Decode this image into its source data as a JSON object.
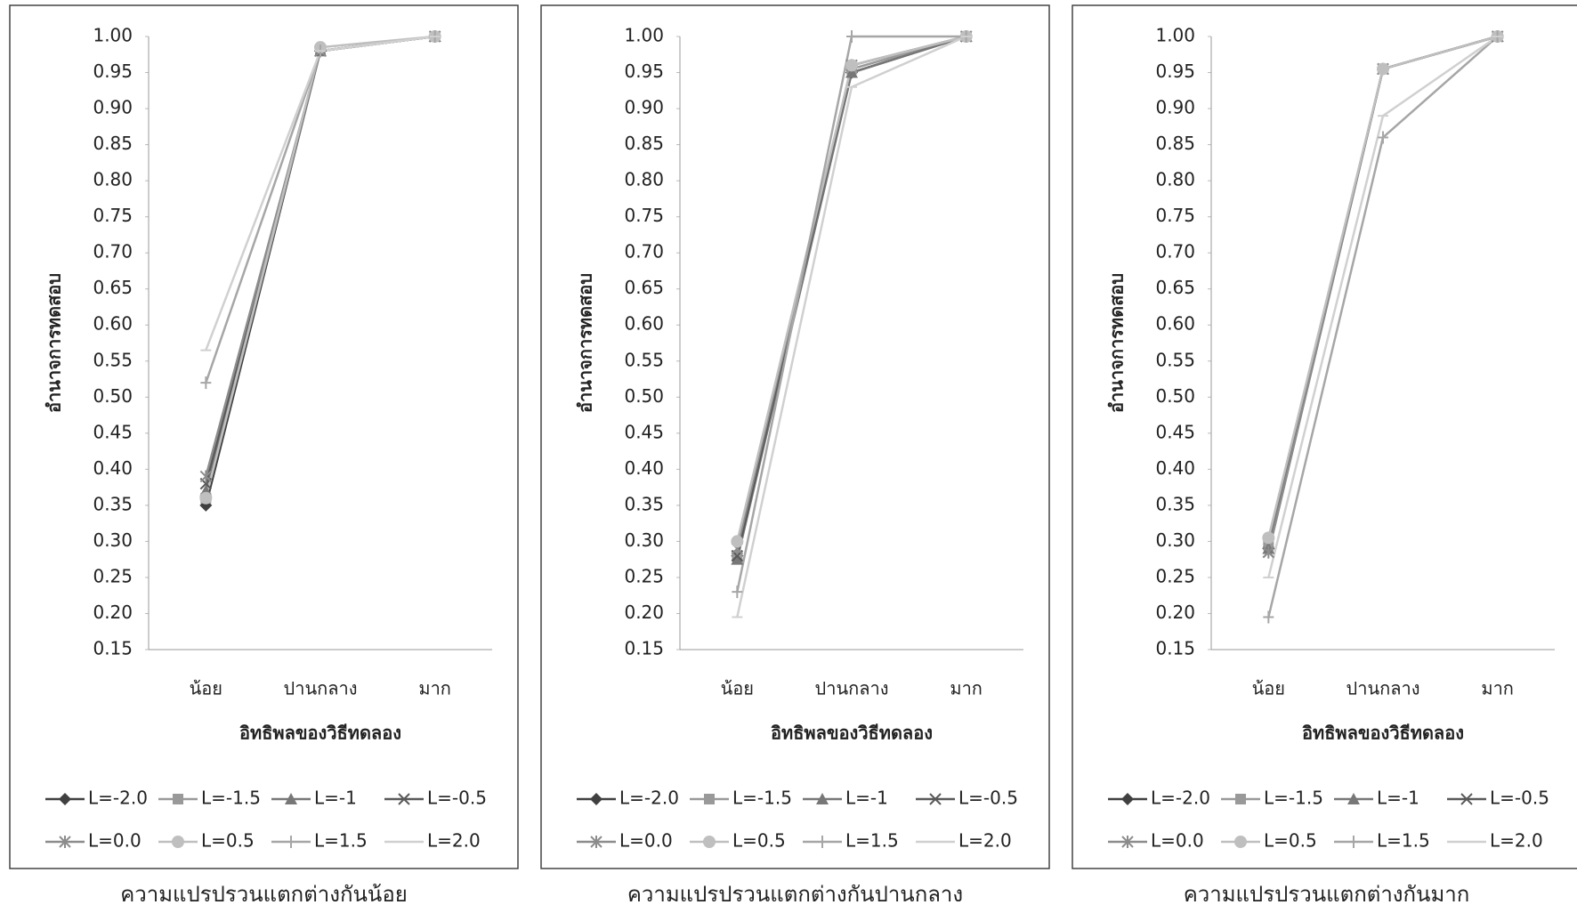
{
  "chart_data": [
    {
      "type": "line",
      "y_label": "อำนาจการทดสอบ",
      "x_label": "อิทธิพลของวิธีทดลอง",
      "caption": "ความแปรปรวนแตกต่างกันน้อย",
      "categories": [
        "น้อย",
        "ปานกลาง",
        "มาก"
      ],
      "ylim": [
        0.15,
        1.0
      ],
      "yticks": [
        0.15,
        {
          "value": 0.2,
          "label": "0.20"
        },
        0.25,
        {
          "value": 0.3,
          "label": "0.30"
        },
        0.35,
        {
          "value": 0.4,
          "label": "0.40"
        },
        0.45,
        {
          "value": 0.5,
          "label": "0.50"
        },
        0.55,
        {
          "value": 0.6,
          "label": "0.60"
        },
        0.65,
        {
          "value": 0.7,
          "label": "0.70"
        },
        0.75,
        {
          "value": 0.8,
          "label": "0.80"
        },
        0.85,
        {
          "value": 0.9,
          "label": "0.90"
        },
        0.95,
        {
          "value": 1.0,
          "label": "1.00"
        }
      ],
      "series": [
        {
          "name": "L=-2.0",
          "color": "#404040",
          "marker": "diamond",
          "values": [
            0.35,
            0.98,
            1.0
          ]
        },
        {
          "name": "L=-1.5",
          "color": "#999999",
          "marker": "square",
          "values": [
            0.36,
            0.98,
            1.0
          ]
        },
        {
          "name": "L=-1",
          "color": "#777777",
          "marker": "triangle",
          "values": [
            0.37,
            0.98,
            1.0
          ]
        },
        {
          "name": "L=-0.5",
          "color": "#595959",
          "marker": "x",
          "values": [
            0.38,
            0.98,
            1.0
          ]
        },
        {
          "name": "L=0.0",
          "color": "#8c8c8c",
          "marker": "star",
          "values": [
            0.39,
            0.98,
            1.0
          ]
        },
        {
          "name": "L=0.5",
          "color": "#bfbfbf",
          "marker": "circle",
          "values": [
            0.36,
            0.985,
            1.0
          ]
        },
        {
          "name": "L=1.5",
          "color": "#a6a6a6",
          "marker": "plus",
          "values": [
            0.52,
            0.98,
            1.0
          ]
        },
        {
          "name": "L=2.0",
          "color": "#d0d0d0",
          "marker": "dash",
          "values": [
            0.565,
            0.98,
            1.0
          ]
        }
      ]
    },
    {
      "type": "line",
      "y_label": "อำนาจการทดสอบ",
      "x_label": "อิทธิพลของวิธีทดลอง",
      "caption": "ความแปรปรวนแตกต่างกันปานกลาง",
      "categories": [
        "น้อย",
        "ปานกลาง",
        "มาก"
      ],
      "ylim": [
        0.15,
        1.0
      ],
      "yticks": [
        0.15,
        {
          "value": 0.2,
          "label": "0.20"
        },
        0.25,
        {
          "value": 0.3,
          "label": "0.30"
        },
        0.35,
        {
          "value": 0.4,
          "label": "0.40"
        },
        0.45,
        {
          "value": 0.5,
          "label": "0.50"
        },
        0.55,
        {
          "value": 0.6,
          "label": "0.60"
        },
        0.65,
        {
          "value": 0.7,
          "label": "0.70"
        },
        0.75,
        {
          "value": 0.8,
          "label": "0.80"
        },
        0.85,
        {
          "value": 0.9,
          "label": "0.90"
        },
        0.95,
        {
          "value": 1.0,
          "label": "1.00"
        }
      ],
      "series": [
        {
          "name": "L=-2.0",
          "color": "#404040",
          "marker": "diamond",
          "values": [
            0.28,
            0.95,
            1.0
          ]
        },
        {
          "name": "L=-1.5",
          "color": "#999999",
          "marker": "square",
          "values": [
            0.28,
            0.955,
            1.0
          ]
        },
        {
          "name": "L=-1",
          "color": "#777777",
          "marker": "triangle",
          "values": [
            0.275,
            0.95,
            1.0
          ]
        },
        {
          "name": "L=-0.5",
          "color": "#595959",
          "marker": "x",
          "values": [
            0.28,
            0.96,
            1.0
          ]
        },
        {
          "name": "L=0.0",
          "color": "#8c8c8c",
          "marker": "star",
          "values": [
            0.29,
            0.96,
            1.0
          ]
        },
        {
          "name": "L=0.5",
          "color": "#bfbfbf",
          "marker": "circle",
          "values": [
            0.3,
            0.96,
            1.0
          ]
        },
        {
          "name": "L=1.5",
          "color": "#a6a6a6",
          "marker": "plus",
          "values": [
            0.23,
            1.0,
            1.0
          ]
        },
        {
          "name": "L=2.0",
          "color": "#d0d0d0",
          "marker": "dash",
          "values": [
            0.195,
            0.93,
            1.0
          ]
        }
      ]
    },
    {
      "type": "line",
      "y_label": "อำนาจการทดสอบ",
      "x_label": "อิทธิพลของวิธีทดลอง",
      "caption": "ความแปรปรวนแตกต่างกันมาก",
      "categories": [
        "น้อย",
        "ปานกลาง",
        "มาก"
      ],
      "ylim": [
        0.15,
        1.0
      ],
      "yticks": [
        0.15,
        {
          "value": 0.2,
          "label": "0.20"
        },
        0.25,
        {
          "value": 0.3,
          "label": "0.30"
        },
        0.35,
        {
          "value": 0.4,
          "label": "0.40"
        },
        0.45,
        {
          "value": 0.5,
          "label": "0.50"
        },
        0.55,
        {
          "value": 0.6,
          "label": "0.60"
        },
        0.65,
        {
          "value": 0.7,
          "label": "0.70"
        },
        0.75,
        {
          "value": 0.8,
          "label": "0.80"
        },
        0.85,
        {
          "value": 0.9,
          "label": "0.90"
        },
        0.95,
        {
          "value": 1.0,
          "label": "1.00"
        }
      ],
      "series": [
        {
          "name": "L=-2.0",
          "color": "#404040",
          "marker": "diamond",
          "values": [
            0.29,
            0.955,
            1.0
          ]
        },
        {
          "name": "L=-1.5",
          "color": "#999999",
          "marker": "square",
          "values": [
            0.295,
            0.955,
            1.0
          ]
        },
        {
          "name": "L=-1",
          "color": "#777777",
          "marker": "triangle",
          "values": [
            0.29,
            0.955,
            1.0
          ]
        },
        {
          "name": "L=-0.5",
          "color": "#595959",
          "marker": "x",
          "values": [
            0.285,
            0.955,
            1.0
          ]
        },
        {
          "name": "L=0.0",
          "color": "#8c8c8c",
          "marker": "star",
          "values": [
            0.285,
            0.955,
            1.0
          ]
        },
        {
          "name": "L=0.5",
          "color": "#bfbfbf",
          "marker": "circle",
          "values": [
            0.305,
            0.955,
            1.0
          ]
        },
        {
          "name": "L=1.5",
          "color": "#a6a6a6",
          "marker": "plus",
          "values": [
            0.195,
            0.86,
            1.0
          ]
        },
        {
          "name": "L=2.0",
          "color": "#d0d0d0",
          "marker": "dash",
          "values": [
            0.25,
            0.89,
            1.0
          ]
        }
      ]
    }
  ]
}
